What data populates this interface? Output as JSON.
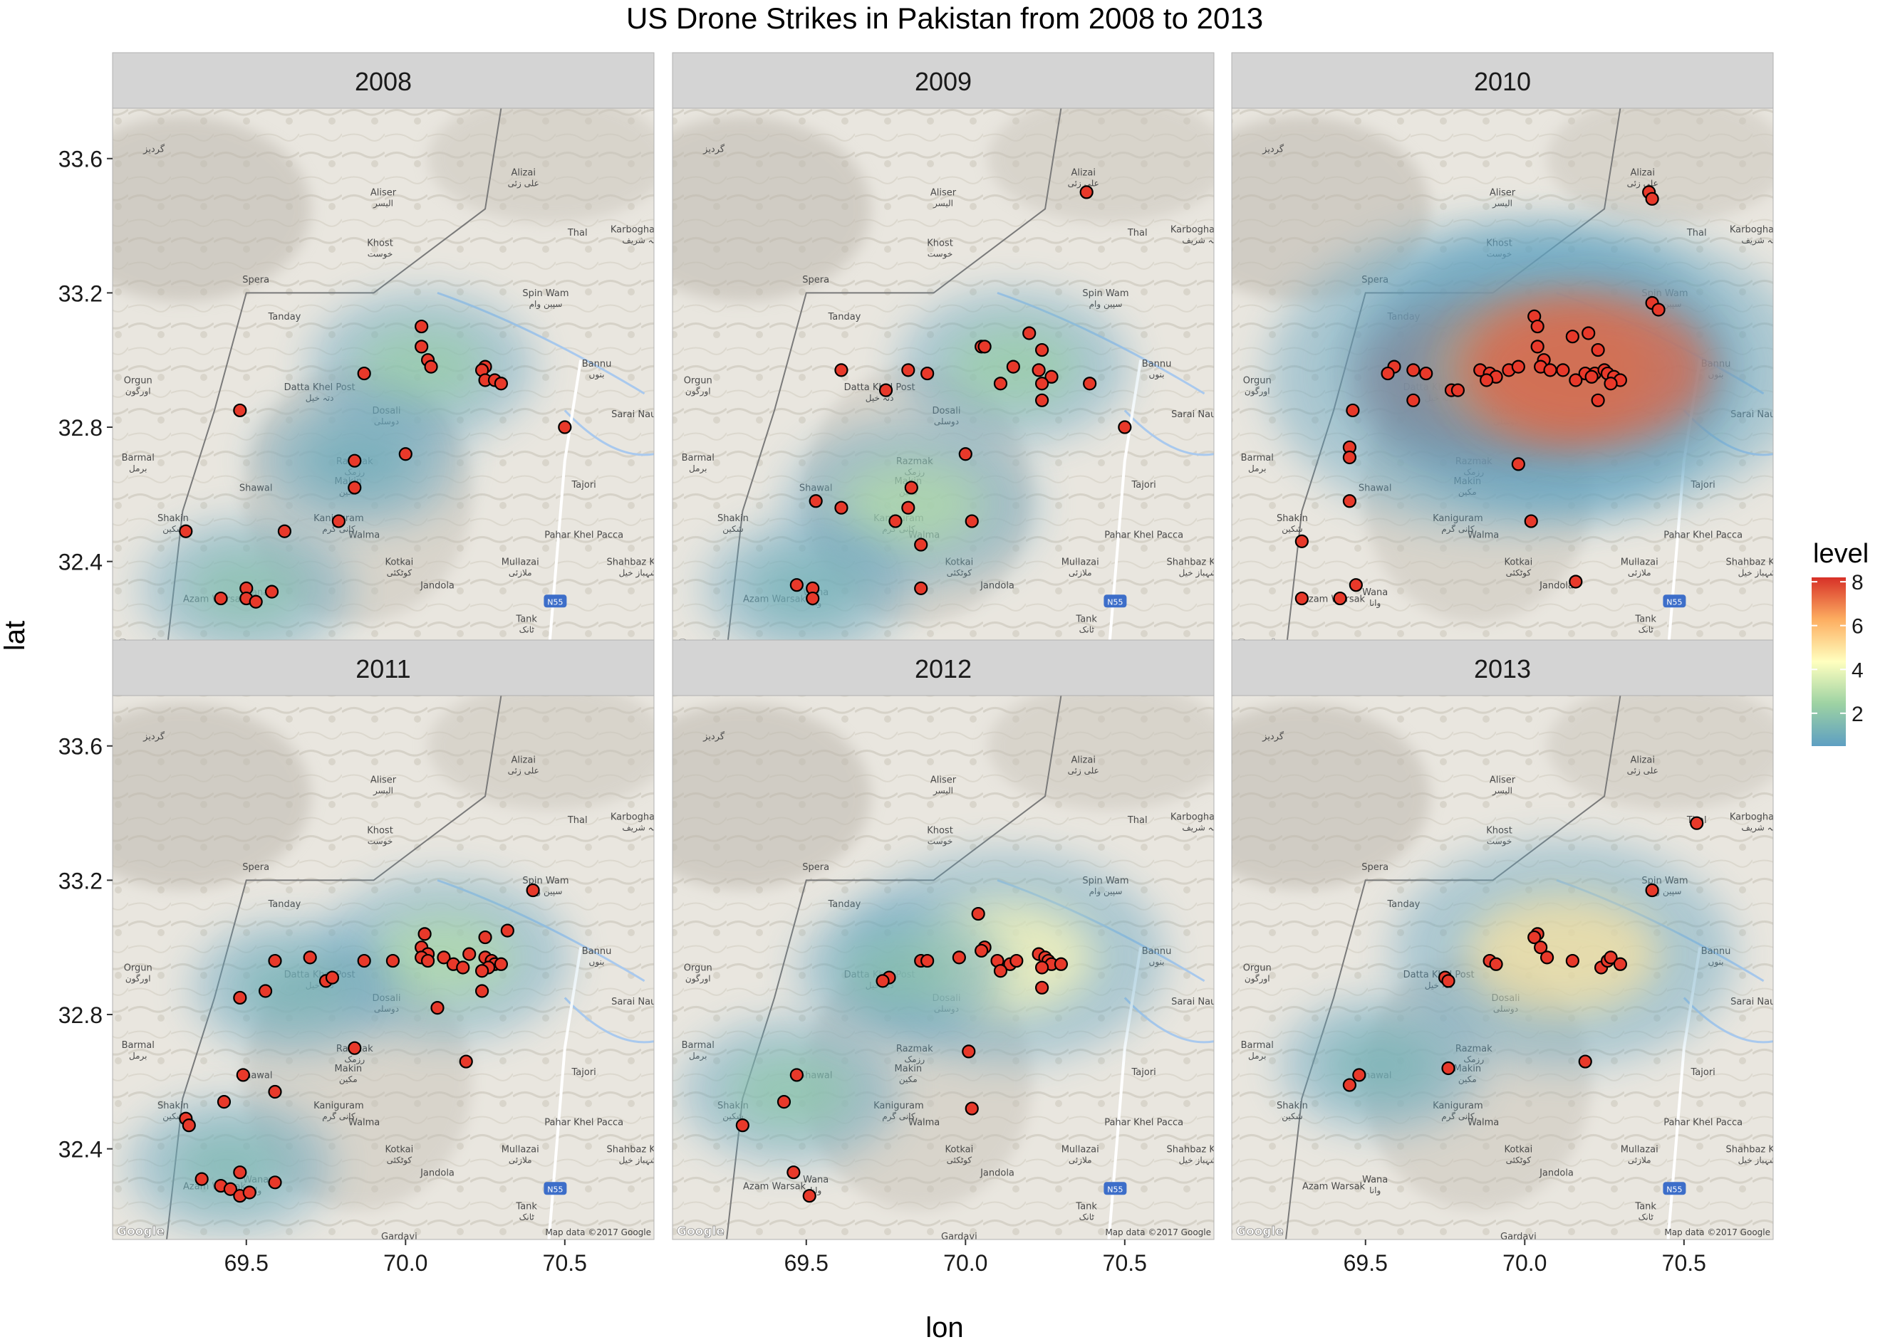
{
  "chart_data": {
    "type": "scatter",
    "title": "US Drone Strikes in Pakistan from 2008 to 2013",
    "xlabel": "lon",
    "ylabel": "lat",
    "xlim": [
      69.08,
      70.78
    ],
    "ylim": [
      32.13,
      33.75
    ],
    "x_ticks": [
      69.5,
      70.0,
      70.5
    ],
    "x_tick_labels": [
      "69.5",
      "70.0",
      "70.5"
    ],
    "y_ticks": [
      32.4,
      32.8,
      33.2,
      33.6
    ],
    "y_tick_labels": [
      "32.4",
      "32.8",
      "33.2",
      "33.6"
    ],
    "legend": {
      "title": "level",
      "position": "right",
      "ticks": [
        2,
        4,
        6,
        8
      ],
      "tick_labels": [
        "2",
        "4",
        "6",
        "8"
      ],
      "range": [
        0.5,
        8.2
      ],
      "colors": [
        "#5e9fc2",
        "#9dd2a3",
        "#ffffbf",
        "#fdae61",
        "#d73027"
      ]
    },
    "point_color": "#e8392a",
    "point_outline": "#000000",
    "basemap": {
      "attribution": "Map data ©2017 Google",
      "logo": "Google",
      "places": [
        {
          "name": "Khost",
          "native": "خوست",
          "lon": 69.92,
          "lat": 33.34
        },
        {
          "name": "Aliser",
          "native": "اليسر",
          "lon": 69.93,
          "lat": 33.49
        },
        {
          "name": "Alizai",
          "native": "علی زئی",
          "lon": 70.37,
          "lat": 33.55
        },
        {
          "name": "Thal",
          "native": "",
          "lon": 70.54,
          "lat": 33.37
        },
        {
          "name": "Karbogha Sharif",
          "native": "کربوغہ شریف",
          "lon": 70.76,
          "lat": 33.38
        },
        {
          "name": "Spera",
          "native": "",
          "lon": 69.53,
          "lat": 33.23
        },
        {
          "name": "Tanday",
          "native": "",
          "lon": 69.62,
          "lat": 33.12
        },
        {
          "name": "Spin Wam",
          "native": "سپین وام",
          "lon": 70.44,
          "lat": 33.19
        },
        {
          "name": "Bannu",
          "native": "بنوں",
          "lon": 70.6,
          "lat": 32.98
        },
        {
          "name": "Orgun",
          "native": "اورگون",
          "lon": 69.16,
          "lat": 32.93
        },
        {
          "name": "Datta Khel Post",
          "native": "دتہ خیل",
          "lon": 69.73,
          "lat": 32.91
        },
        {
          "name": "Dosali",
          "native": "دوسلی",
          "lon": 69.94,
          "lat": 32.84
        },
        {
          "name": "Sarai Naurang",
          "native": "",
          "lon": 70.75,
          "lat": 32.83
        },
        {
          "name": "Barmal",
          "native": "برمل",
          "lon": 69.16,
          "lat": 32.7
        },
        {
          "name": "Razmak",
          "native": "رزمک",
          "lon": 69.84,
          "lat": 32.69
        },
        {
          "name": "Makin",
          "native": "مکین",
          "lon": 69.82,
          "lat": 32.63
        },
        {
          "name": "Shawal",
          "native": "",
          "lon": 69.53,
          "lat": 32.61
        },
        {
          "name": "Tajori",
          "native": "",
          "lon": 70.56,
          "lat": 32.62
        },
        {
          "name": "Shakin",
          "native": "شکین",
          "lon": 69.27,
          "lat": 32.52
        },
        {
          "name": "Kaniguram",
          "native": "کانی گرم",
          "lon": 69.79,
          "lat": 32.52
        },
        {
          "name": "Walma",
          "native": "",
          "lon": 69.87,
          "lat": 32.47
        },
        {
          "name": "Pahar Khel Pacca",
          "native": "",
          "lon": 70.56,
          "lat": 32.47
        },
        {
          "name": "Mullazai",
          "native": "ملازئی",
          "lon": 70.36,
          "lat": 32.39
        },
        {
          "name": "Shahbaz Khel",
          "native": "شہباز خیل",
          "lon": 70.73,
          "lat": 32.39
        },
        {
          "name": "Kotkai",
          "native": "کوٹکئی",
          "lon": 69.98,
          "lat": 32.39
        },
        {
          "name": "Jandola",
          "native": "",
          "lon": 70.1,
          "lat": 32.32
        },
        {
          "name": "Wana",
          "native": "وانا",
          "lon": 69.53,
          "lat": 32.3
        },
        {
          "name": "Azam Warsak",
          "native": "",
          "lon": 69.4,
          "lat": 32.28
        },
        {
          "name": "Tank",
          "native": "ٹانک",
          "lon": 70.38,
          "lat": 32.22
        },
        {
          "name": "Gardavi",
          "native": "",
          "lon": 69.98,
          "lat": 32.13
        },
        {
          "name": "گردیز",
          "native": "",
          "lon": 69.21,
          "lat": 33.62
        }
      ],
      "road_shield": "N55"
    },
    "panels": [
      {
        "year": "2008",
        "density": [
          {
            "lon": 70.05,
            "lat": 32.98,
            "level": 2.2
          },
          {
            "lon": 69.5,
            "lat": 32.32,
            "level": 1.8
          },
          {
            "lon": 69.85,
            "lat": 32.7,
            "level": 1.0
          }
        ],
        "points": [
          [
            70.05,
            33.1
          ],
          [
            70.05,
            33.04
          ],
          [
            70.07,
            33.0
          ],
          [
            70.08,
            32.98
          ],
          [
            69.87,
            32.96
          ],
          [
            70.25,
            32.98
          ],
          [
            70.24,
            32.97
          ],
          [
            70.25,
            32.94
          ],
          [
            70.28,
            32.94
          ],
          [
            70.3,
            32.93
          ],
          [
            69.48,
            32.85
          ],
          [
            70.5,
            32.8
          ],
          [
            70.0,
            32.72
          ],
          [
            69.84,
            32.7
          ],
          [
            69.84,
            32.62
          ],
          [
            69.79,
            32.52
          ],
          [
            69.62,
            32.49
          ],
          [
            69.31,
            32.49
          ],
          [
            69.5,
            32.32
          ],
          [
            69.5,
            32.29
          ],
          [
            69.58,
            32.31
          ],
          [
            69.53,
            32.28
          ],
          [
            69.42,
            32.29
          ]
        ]
      },
      {
        "year": "2009",
        "density": [
          {
            "lon": 70.15,
            "lat": 32.98,
            "level": 2.3
          },
          {
            "lon": 69.83,
            "lat": 32.57,
            "level": 2.8
          },
          {
            "lon": 69.5,
            "lat": 32.32,
            "level": 1.2
          }
        ],
        "points": [
          [
            70.38,
            33.5
          ],
          [
            70.2,
            33.08
          ],
          [
            70.05,
            33.04
          ],
          [
            70.06,
            33.04
          ],
          [
            70.24,
            33.03
          ],
          [
            70.15,
            32.98
          ],
          [
            69.61,
            32.97
          ],
          [
            69.82,
            32.97
          ],
          [
            69.88,
            32.96
          ],
          [
            70.23,
            32.97
          ],
          [
            70.27,
            32.95
          ],
          [
            70.24,
            32.93
          ],
          [
            70.11,
            32.93
          ],
          [
            70.39,
            32.93
          ],
          [
            69.75,
            32.91
          ],
          [
            70.24,
            32.88
          ],
          [
            70.5,
            32.8
          ],
          [
            70.0,
            32.72
          ],
          [
            69.83,
            32.62
          ],
          [
            69.82,
            32.56
          ],
          [
            69.53,
            32.58
          ],
          [
            69.61,
            32.56
          ],
          [
            69.78,
            32.52
          ],
          [
            70.02,
            32.52
          ],
          [
            69.86,
            32.45
          ],
          [
            69.47,
            32.33
          ],
          [
            69.52,
            32.32
          ],
          [
            69.52,
            32.29
          ],
          [
            69.86,
            32.32
          ]
        ]
      },
      {
        "year": "2010",
        "density": [
          {
            "lon": 69.92,
            "lat": 32.95,
            "level": 8.0
          },
          {
            "lon": 70.05,
            "lat": 32.98,
            "level": 6.5
          },
          {
            "lon": 70.2,
            "lat": 32.97,
            "level": 7.5
          }
        ],
        "points": [
          [
            70.39,
            33.5
          ],
          [
            70.4,
            33.48
          ],
          [
            70.4,
            33.17
          ],
          [
            70.42,
            33.15
          ],
          [
            70.03,
            33.13
          ],
          [
            70.04,
            33.1
          ],
          [
            70.2,
            33.08
          ],
          [
            70.15,
            33.07
          ],
          [
            70.04,
            33.04
          ],
          [
            70.23,
            33.03
          ],
          [
            70.06,
            33.0
          ],
          [
            70.05,
            32.98
          ],
          [
            69.59,
            32.98
          ],
          [
            69.65,
            32.97
          ],
          [
            69.69,
            32.96
          ],
          [
            69.57,
            32.96
          ],
          [
            69.86,
            32.97
          ],
          [
            69.89,
            32.96
          ],
          [
            69.91,
            32.95
          ],
          [
            69.88,
            32.94
          ],
          [
            69.95,
            32.97
          ],
          [
            69.98,
            32.98
          ],
          [
            70.08,
            32.97
          ],
          [
            70.12,
            32.97
          ],
          [
            70.19,
            32.96
          ],
          [
            70.22,
            32.96
          ],
          [
            70.25,
            32.97
          ],
          [
            70.26,
            32.96
          ],
          [
            70.28,
            32.95
          ],
          [
            70.3,
            32.94
          ],
          [
            70.27,
            32.93
          ],
          [
            70.21,
            32.95
          ],
          [
            70.16,
            32.94
          ],
          [
            69.77,
            32.91
          ],
          [
            69.79,
            32.91
          ],
          [
            69.65,
            32.88
          ],
          [
            70.23,
            32.88
          ],
          [
            69.46,
            32.85
          ],
          [
            69.45,
            32.74
          ],
          [
            69.45,
            32.71
          ],
          [
            69.98,
            32.69
          ],
          [
            69.45,
            32.58
          ],
          [
            70.02,
            32.52
          ],
          [
            69.3,
            32.46
          ],
          [
            69.47,
            32.33
          ],
          [
            70.16,
            32.34
          ],
          [
            69.3,
            32.29
          ],
          [
            69.42,
            32.29
          ]
        ]
      },
      {
        "year": "2011",
        "density": [
          {
            "lon": 70.12,
            "lat": 32.97,
            "level": 2.8
          },
          {
            "lon": 69.45,
            "lat": 32.35,
            "level": 1.5
          },
          {
            "lon": 69.65,
            "lat": 32.88,
            "level": 1.3
          }
        ],
        "points": [
          [
            70.4,
            33.17
          ],
          [
            70.06,
            33.04
          ],
          [
            70.32,
            33.05
          ],
          [
            70.25,
            33.03
          ],
          [
            70.05,
            33.0
          ],
          [
            70.07,
            32.98
          ],
          [
            70.05,
            32.97
          ],
          [
            69.7,
            32.97
          ],
          [
            69.59,
            32.96
          ],
          [
            69.87,
            32.96
          ],
          [
            69.96,
            32.96
          ],
          [
            70.12,
            32.97
          ],
          [
            70.2,
            32.98
          ],
          [
            70.25,
            32.97
          ],
          [
            70.27,
            32.96
          ],
          [
            70.28,
            32.95
          ],
          [
            70.3,
            32.95
          ],
          [
            70.26,
            32.94
          ],
          [
            70.15,
            32.95
          ],
          [
            70.18,
            32.94
          ],
          [
            70.07,
            32.96
          ],
          [
            70.24,
            32.93
          ],
          [
            69.75,
            32.9
          ],
          [
            69.77,
            32.91
          ],
          [
            69.56,
            32.87
          ],
          [
            69.48,
            32.85
          ],
          [
            70.1,
            32.82
          ],
          [
            70.24,
            32.87
          ],
          [
            69.84,
            32.7
          ],
          [
            70.19,
            32.66
          ],
          [
            69.49,
            32.62
          ],
          [
            69.43,
            32.54
          ],
          [
            69.59,
            32.57
          ],
          [
            69.31,
            32.49
          ],
          [
            69.32,
            32.47
          ],
          [
            69.36,
            32.31
          ],
          [
            69.42,
            32.29
          ],
          [
            69.45,
            32.28
          ],
          [
            69.48,
            32.33
          ],
          [
            69.59,
            32.3
          ],
          [
            69.48,
            32.26
          ],
          [
            69.51,
            32.27
          ]
        ]
      },
      {
        "year": "2012",
        "density": [
          {
            "lon": 70.12,
            "lat": 32.97,
            "level": 4.5
          },
          {
            "lon": 69.45,
            "lat": 32.57,
            "level": 2.0
          },
          {
            "lon": 69.8,
            "lat": 32.93,
            "level": 1.8
          }
        ],
        "points": [
          [
            70.04,
            33.1
          ],
          [
            70.06,
            33.0
          ],
          [
            70.05,
            32.99
          ],
          [
            69.76,
            32.91
          ],
          [
            69.74,
            32.9
          ],
          [
            69.86,
            32.96
          ],
          [
            69.88,
            32.96
          ],
          [
            69.98,
            32.97
          ],
          [
            70.1,
            32.96
          ],
          [
            70.14,
            32.95
          ],
          [
            70.16,
            32.96
          ],
          [
            70.23,
            32.98
          ],
          [
            70.25,
            32.97
          ],
          [
            70.26,
            32.96
          ],
          [
            70.27,
            32.95
          ],
          [
            70.3,
            32.95
          ],
          [
            70.24,
            32.94
          ],
          [
            70.11,
            32.93
          ],
          [
            70.24,
            32.88
          ],
          [
            70.01,
            32.69
          ],
          [
            69.47,
            32.62
          ],
          [
            69.43,
            32.54
          ],
          [
            70.02,
            32.52
          ],
          [
            69.3,
            32.47
          ],
          [
            69.46,
            32.33
          ],
          [
            69.51,
            32.26
          ]
        ]
      },
      {
        "year": "2013",
        "density": [
          {
            "lon": 70.12,
            "lat": 32.98,
            "level": 5.0
          },
          {
            "lon": 69.55,
            "lat": 32.65,
            "level": 1.3
          }
        ],
        "points": [
          [
            70.54,
            33.37
          ],
          [
            70.4,
            33.17
          ],
          [
            70.04,
            33.04
          ],
          [
            70.03,
            33.03
          ],
          [
            70.05,
            33.0
          ],
          [
            70.07,
            32.97
          ],
          [
            69.89,
            32.96
          ],
          [
            69.91,
            32.95
          ],
          [
            70.15,
            32.96
          ],
          [
            70.24,
            32.94
          ],
          [
            70.26,
            32.96
          ],
          [
            70.27,
            32.97
          ],
          [
            70.3,
            32.95
          ],
          [
            69.75,
            32.91
          ],
          [
            69.76,
            32.9
          ],
          [
            70.19,
            32.66
          ],
          [
            69.76,
            32.64
          ],
          [
            69.48,
            32.62
          ],
          [
            69.45,
            32.59
          ]
        ]
      }
    ]
  }
}
